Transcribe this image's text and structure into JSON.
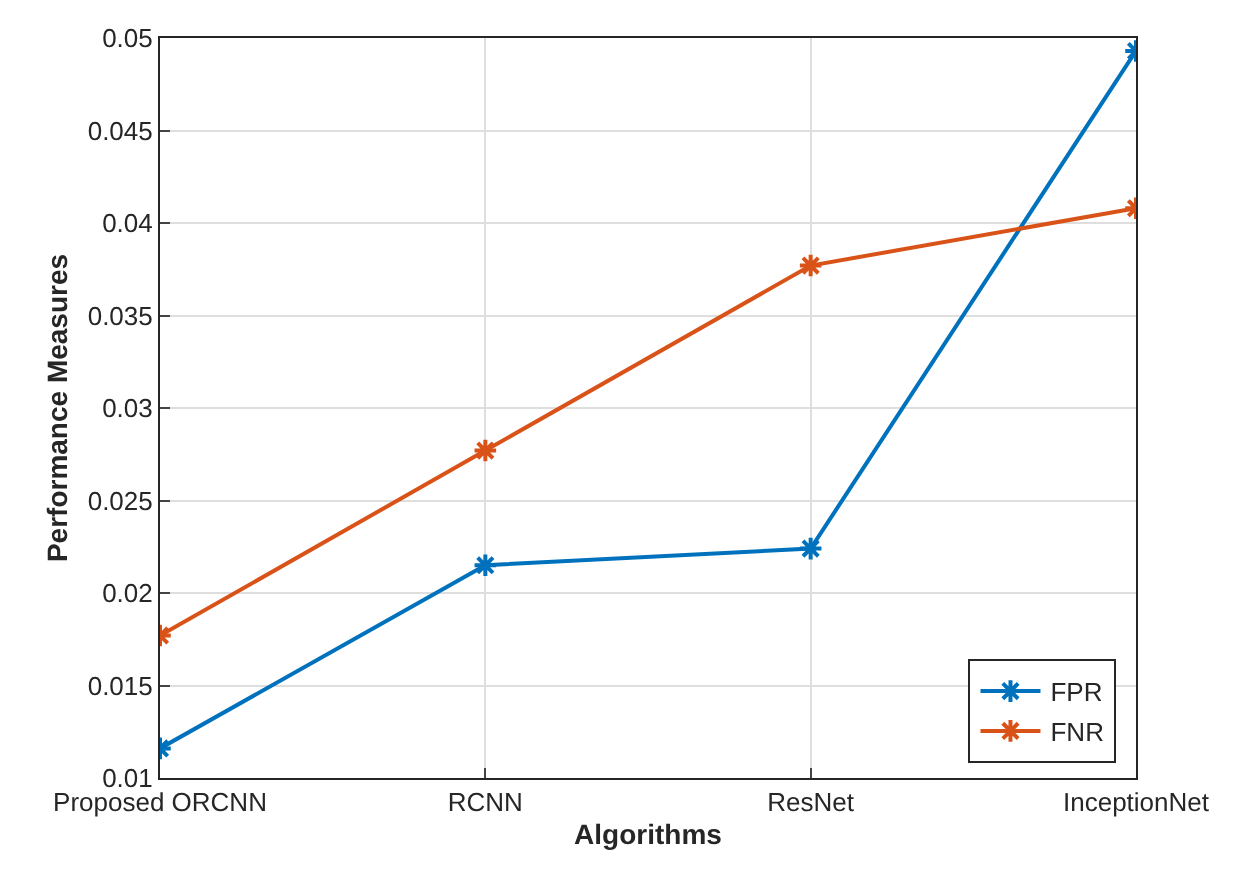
{
  "chart_data": {
    "type": "line",
    "xlabel": "Algorithms",
    "ylabel": "Performance Measures",
    "categories": [
      "Proposed ORCNN",
      "RCNN",
      "ResNet",
      "InceptionNet"
    ],
    "series": [
      {
        "name": "FPR",
        "color": "#0072bd",
        "values": [
          0.0116,
          0.0215,
          0.0224,
          0.0493
        ]
      },
      {
        "name": "FNR",
        "color": "#d95319",
        "values": [
          0.0177,
          0.0277,
          0.0377,
          0.0408
        ]
      }
    ],
    "ylim": [
      0.01,
      0.05
    ],
    "yticks": [
      0.01,
      0.015,
      0.02,
      0.025,
      0.03,
      0.035,
      0.04,
      0.045,
      0.05
    ],
    "grid": true,
    "legend": "bottom right",
    "marker": "cross",
    "line_style": "solid"
  }
}
